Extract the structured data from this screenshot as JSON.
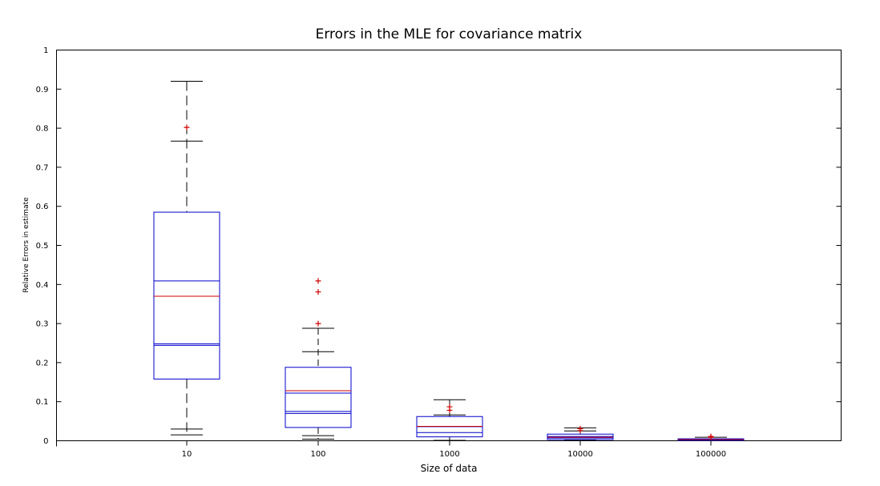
{
  "chart_data": {
    "type": "box",
    "title": "Errors in the MLE for covariance matrix",
    "xlabel": "Size of data",
    "ylabel": "Relative Errors in estimate",
    "ylim": [
      0,
      1
    ],
    "yticks": [
      "0",
      "0.1",
      "0.2",
      "0.3",
      "0.4",
      "0.5",
      "0.6",
      "0.7",
      "0.8",
      "0.9",
      "1"
    ],
    "categories": [
      "10",
      "100",
      "1000",
      "10000",
      "100000"
    ],
    "grid": false,
    "colors": {
      "box": "#0000cc",
      "median": "#cc0000",
      "whisker": "#000000",
      "outlier": "#cc0000",
      "axis": "#000000"
    },
    "boxes": [
      {
        "category": "10",
        "q1": 0.158,
        "q3": 0.585,
        "median": 0.37,
        "inner_lines": [
          0.409,
          0.248,
          0.244
        ],
        "whisker_low": 0.015,
        "whisker_high": 0.92,
        "caps": [
          0.03,
          0.767,
          0.015,
          0.92
        ],
        "outliers": [
          0.802
        ]
      },
      {
        "category": "100",
        "q1": 0.034,
        "q3": 0.188,
        "median": 0.128,
        "inner_lines": [
          0.122,
          0.075,
          0.07
        ],
        "whisker_low": 0.004,
        "whisker_high": 0.288,
        "caps": [
          0.013,
          0.228,
          0.004,
          0.288
        ],
        "outliers": [
          0.409,
          0.381,
          0.3
        ]
      },
      {
        "category": "1000",
        "q1": 0.01,
        "q3": 0.062,
        "median": 0.037,
        "inner_lines": [
          0.036,
          0.021
        ],
        "whisker_low": 0.001,
        "whisker_high": 0.105,
        "caps": [
          0.001,
          0.066,
          0.105
        ],
        "outliers": [
          0.087,
          0.078
        ]
      },
      {
        "category": "10000",
        "q1": 0.003,
        "q3": 0.017,
        "median": 0.009,
        "inner_lines": [
          0.007,
          0.011
        ],
        "whisker_low": 0.001,
        "whisker_high": 0.033,
        "caps": [
          0.001,
          0.025,
          0.033
        ],
        "outliers": [
          0.031,
          0.026
        ]
      },
      {
        "category": "100000",
        "q1": 0.001,
        "q3": 0.005,
        "median": 0.003,
        "inner_lines": [
          0.004
        ],
        "whisker_low": 0.0005,
        "whisker_high": 0.009,
        "caps": [
          0.009
        ],
        "outliers": [
          0.011,
          0.009
        ]
      }
    ]
  }
}
